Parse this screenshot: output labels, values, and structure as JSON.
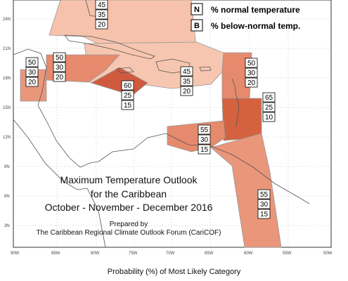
{
  "map": {
    "title_lines": [
      "Maximum Temperature Outlook",
      "for the Caribbean",
      "October - November - December 2016"
    ],
    "prepared_by": "Prepared by",
    "organization": "The Caribbean Regional Climate Outlook Forum (CariCOF)",
    "caption": "Probability (%) of Most Likely Category",
    "lat_labels": [
      "24N",
      "21N",
      "18N",
      "15N",
      "12N",
      "9N",
      "6N",
      "3N"
    ],
    "lon_labels": [
      "90W",
      "85W",
      "80W",
      "75W",
      "70W",
      "65W",
      "60W",
      "55W",
      "50W"
    ],
    "legend": [
      {
        "letter": "N",
        "text": "% normal temperature"
      },
      {
        "letter": "B",
        "text": "% below-normal temp."
      }
    ],
    "colors": {
      "sea": "#ffffff",
      "land": "#ffffff",
      "coast": "#555555",
      "grid": "#999999",
      "zone_45": "#f6c2ac",
      "zone_50": "#e9967a",
      "zone_55": "#e58a6c",
      "zone_60": "#d05a3e",
      "zone_65": "#d4623f"
    },
    "zones": [
      {
        "name": "northern-caribbean-45",
        "above": "45",
        "normal": "35",
        "below": "20"
      },
      {
        "name": "belize-50",
        "above": "50",
        "normal": "30",
        "below": "20"
      },
      {
        "name": "western-caribbean-50",
        "above": "50",
        "normal": "30",
        "below": "20"
      },
      {
        "name": "jamaica-60",
        "above": "60",
        "normal": "25",
        "below": "15"
      },
      {
        "name": "greater-antilles-45",
        "above": "45",
        "normal": "35",
        "below": "20"
      },
      {
        "name": "leeward-islands-50",
        "above": "50",
        "normal": "30",
        "below": "20"
      },
      {
        "name": "windward-islands-65",
        "above": "65",
        "normal": "25",
        "below": "10"
      },
      {
        "name": "abc-islands-55",
        "above": "55",
        "normal": "30",
        "below": "15"
      },
      {
        "name": "guianas-55",
        "above": "55",
        "normal": "30",
        "below": "15"
      }
    ]
  }
}
